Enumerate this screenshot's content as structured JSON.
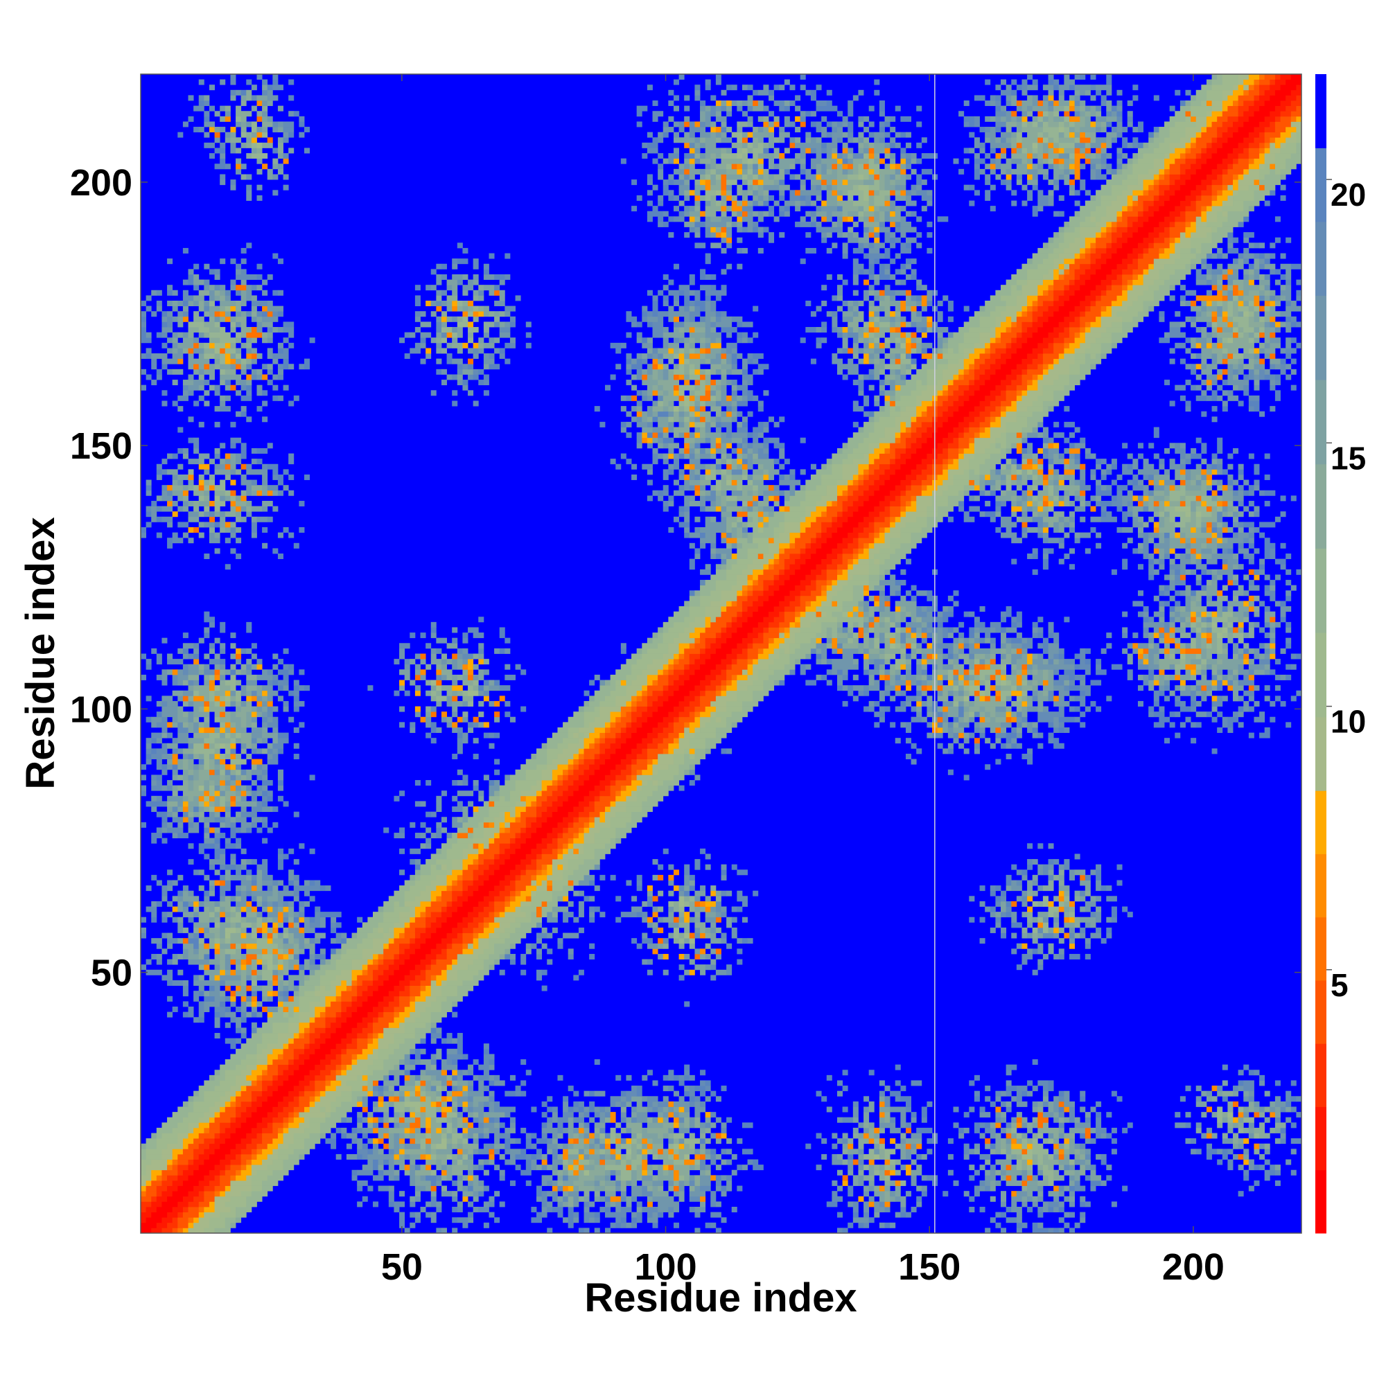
{
  "chart_data": {
    "type": "heatmap",
    "title": "",
    "xlabel": "Residue index",
    "ylabel": "Residue index",
    "xlim": [
      1,
      220
    ],
    "ylim": [
      1,
      220
    ],
    "x_ticks": [
      50,
      100,
      150,
      200
    ],
    "y_ticks": [
      50,
      100,
      150,
      200
    ],
    "colorbar": {
      "ticks": [
        5,
        10,
        15,
        20
      ],
      "range": [
        0,
        22
      ],
      "levels": [
        {
          "from": 0,
          "to": 1.2,
          "color": "#ff0000"
        },
        {
          "from": 1.2,
          "to": 2.4,
          "color": "#ff1800"
        },
        {
          "from": 2.4,
          "to": 3.6,
          "color": "#ff3300"
        },
        {
          "from": 3.6,
          "to": 4.8,
          "color": "#ff5500"
        },
        {
          "from": 4.8,
          "to": 6.0,
          "color": "#ff7200"
        },
        {
          "from": 6.0,
          "to": 7.2,
          "color": "#ff8c00"
        },
        {
          "from": 7.2,
          "to": 8.4,
          "color": "#ffaa00"
        },
        {
          "from": 8.4,
          "to": 9.8,
          "color": "#a6b98a"
        },
        {
          "from": 9.8,
          "to": 11.4,
          "color": "#9fb98e"
        },
        {
          "from": 11.4,
          "to": 13.0,
          "color": "#96b494"
        },
        {
          "from": 13.0,
          "to": 14.6,
          "color": "#8aaa9a"
        },
        {
          "from": 14.6,
          "to": 16.2,
          "color": "#7ea2a2"
        },
        {
          "from": 16.2,
          "to": 17.8,
          "color": "#7096ac"
        },
        {
          "from": 17.8,
          "to": 19.2,
          "color": "#648cb6"
        },
        {
          "from": 19.2,
          "to": 20.6,
          "color": "#5a84be"
        },
        {
          "from": 20.6,
          "to": 22,
          "color": "#0000ff"
        }
      ]
    },
    "background_color": "#0000ff",
    "diagonal": {
      "from": 1,
      "to": 220,
      "core_color": "#ff0000",
      "band_color": "#ff7a00"
    },
    "contact_blocks": [
      {
        "x": [
          1,
          30
        ],
        "y": [
          160,
          185
        ],
        "density": 0.55
      },
      {
        "x": [
          1,
          30
        ],
        "y": [
          130,
          150
        ],
        "density": 0.5
      },
      {
        "x": [
          1,
          30
        ],
        "y": [
          90,
          115
        ],
        "density": 0.6
      },
      {
        "x": [
          1,
          25
        ],
        "y": [
          75,
          92
        ],
        "density": 0.6
      },
      {
        "x": [
          1,
          35
        ],
        "y": [
          40,
          75
        ],
        "density": 0.6
      },
      {
        "x": [
          15,
          30
        ],
        "y": [
          195,
          220
        ],
        "density": 0.3
      },
      {
        "x": [
          52,
          70
        ],
        "y": [
          160,
          185
        ],
        "density": 0.35
      },
      {
        "x": [
          48,
          65
        ],
        "y": [
          95,
          115
        ],
        "density": 0.35
      },
      {
        "x": [
          50,
          85
        ],
        "y": [
          60,
          88
        ],
        "density": 0.5
      },
      {
        "x": [
          35,
          70
        ],
        "y": [
          10,
          40
        ],
        "density": 0.6
      },
      {
        "x": [
          75,
          110
        ],
        "y": [
          1,
          30
        ],
        "density": 0.55
      },
      {
        "x": [
          92,
          115
        ],
        "y": [
          55,
          72
        ],
        "density": 0.4
      },
      {
        "x": [
          85,
          110
        ],
        "y": [
          85,
          105
        ],
        "density": 0.5
      },
      {
        "x": [
          90,
          118
        ],
        "y": [
          140,
          178
        ],
        "density": 0.6
      },
      {
        "x": [
          95,
          135
        ],
        "y": [
          190,
          220
        ],
        "density": 0.55
      },
      {
        "x": [
          100,
          125
        ],
        "y": [
          130,
          155
        ],
        "density": 0.6
      },
      {
        "x": [
          118,
          148
        ],
        "y": [
          105,
          130
        ],
        "density": 0.6
      },
      {
        "x": [
          130,
          150
        ],
        "y": [
          160,
          185
        ],
        "density": 0.55
      },
      {
        "x": [
          125,
          150
        ],
        "y": [
          185,
          215
        ],
        "density": 0.55
      },
      {
        "x": [
          135,
          150
        ],
        "y": [
          1,
          25
        ],
        "density": 0.35
      },
      {
        "x": [
          150,
          180
        ],
        "y": [
          95,
          115
        ],
        "density": 0.6
      },
      {
        "x": [
          150,
          185
        ],
        "y": [
          135,
          155
        ],
        "density": 0.55
      },
      {
        "x": [
          155,
          180
        ],
        "y": [
          1,
          30
        ],
        "density": 0.45
      },
      {
        "x": [
          165,
          185
        ],
        "y": [
          55,
          72
        ],
        "density": 0.4
      },
      {
        "x": [
          155,
          190
        ],
        "y": [
          195,
          220
        ],
        "density": 0.6
      },
      {
        "x": [
          185,
          210
        ],
        "y": [
          100,
          120
        ],
        "density": 0.55
      },
      {
        "x": [
          185,
          210
        ],
        "y": [
          125,
          150
        ],
        "density": 0.55
      },
      {
        "x": [
          200,
          220
        ],
        "y": [
          160,
          190
        ],
        "density": 0.55
      },
      {
        "x": [
          200,
          220
        ],
        "y": [
          195,
          220
        ],
        "density": 0.45
      },
      {
        "x": [
          205,
          220
        ],
        "y": [
          10,
          30
        ],
        "density": 0.35
      }
    ]
  }
}
